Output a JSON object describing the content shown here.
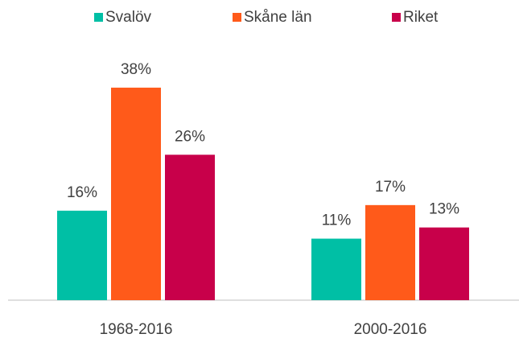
{
  "chart_data": {
    "type": "bar",
    "categories": [
      "1968-2016",
      "2000-2016"
    ],
    "series": [
      {
        "name": "Svalöv",
        "color": "#00bfa5",
        "values": [
          16,
          11
        ],
        "value_labels": [
          "16%",
          "11%"
        ]
      },
      {
        "name": "Skåne län",
        "color": "#ff5a1a",
        "values": [
          38,
          17
        ],
        "value_labels": [
          "38%",
          "17%"
        ]
      },
      {
        "name": "Riket",
        "color": "#c8004a",
        "values": [
          26,
          13
        ],
        "value_labels": [
          "26%",
          "13%"
        ]
      }
    ],
    "legend": "top"
  }
}
